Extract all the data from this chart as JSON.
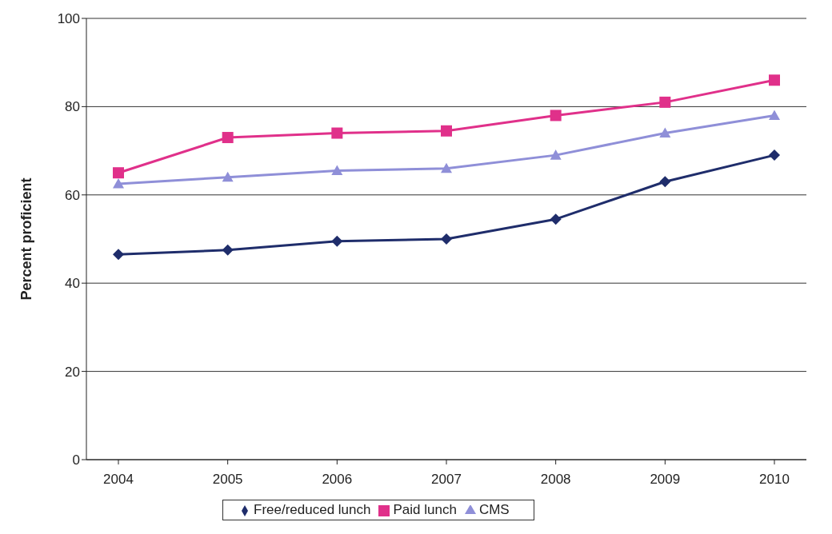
{
  "chart_data": {
    "type": "line",
    "ylabel": "Percent proficient",
    "categories": [
      "2004",
      "2005",
      "2006",
      "2007",
      "2008",
      "2009",
      "2010"
    ],
    "series": [
      {
        "name": "Free/reduced lunch",
        "color": "#1f2d6b",
        "marker": "diamond",
        "values": [
          46.5,
          47.5,
          49.5,
          50,
          54.5,
          63,
          69
        ]
      },
      {
        "name": "Paid lunch",
        "color": "#e0308a",
        "marker": "square",
        "values": [
          65,
          73,
          74,
          74.5,
          78,
          81,
          86
        ]
      },
      {
        "name": "CMS",
        "color": "#8f8fd8",
        "marker": "triangle",
        "values": [
          62.5,
          64,
          65.5,
          66,
          69,
          74,
          78
        ]
      }
    ],
    "ylim": [
      0,
      100
    ],
    "yticks": [
      0,
      20,
      40,
      60,
      80,
      100
    ],
    "grid": "y",
    "legend": "bottom"
  }
}
